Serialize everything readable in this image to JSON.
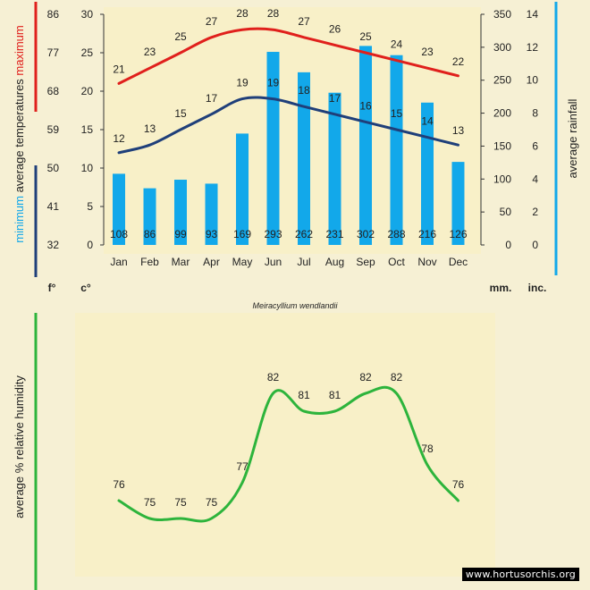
{
  "chart_data": [
    {
      "type": "bar+line",
      "subtitle": "Meiracyllium wendlandii",
      "categories": [
        "Jan",
        "Feb",
        "Mar",
        "Apr",
        "May",
        "Jun",
        "Jul",
        "Aug",
        "Sep",
        "Oct",
        "Nov",
        "Dec"
      ],
      "series": [
        {
          "name": "maximum",
          "type": "line",
          "color": "#e0201c",
          "values": [
            21,
            23,
            25,
            27,
            28,
            28,
            27,
            26,
            25,
            24,
            23,
            22
          ]
        },
        {
          "name": "minimum",
          "type": "line",
          "color": "#1f3f7a",
          "values": [
            12,
            13,
            15,
            17,
            19,
            19,
            18,
            17,
            16,
            15,
            14,
            13
          ]
        },
        {
          "name": "rainfall",
          "type": "bar",
          "color": "#12a8ea",
          "values": [
            108,
            86,
            99,
            93,
            169,
            293,
            262,
            231,
            302,
            288,
            216,
            126
          ]
        }
      ],
      "ylabel_left": "average temperatures",
      "ylabel_left_prefix_min": "minimum",
      "ylabel_left_suffix_max": "maximum",
      "ylabel_right": "average rainfall",
      "axis_celsius": {
        "unit": "c°",
        "ticks": [
          "30",
          "25",
          "20",
          "15",
          "10",
          "5",
          "0"
        ],
        "ylim": [
          0,
          30
        ]
      },
      "axis_fahrenheit": {
        "unit": "f°",
        "ticks": [
          "86",
          "77",
          "68",
          "59",
          "50",
          "41",
          "32"
        ]
      },
      "axis_mm": {
        "unit": "mm.",
        "ticks": [
          "350",
          "300",
          "250",
          "200",
          "150",
          "100",
          "50",
          "0"
        ],
        "ylim": [
          0,
          350
        ]
      },
      "axis_inch": {
        "unit": "inc.",
        "ticks": [
          "14",
          "12",
          "10",
          "8",
          "6",
          "4",
          "2",
          "0"
        ]
      },
      "grid": false
    },
    {
      "type": "line",
      "categories": [
        "Jan",
        "Feb",
        "Mar",
        "Apr",
        "May",
        "Jun",
        "Jul",
        "Aug",
        "Sep",
        "Oct",
        "Nov",
        "Dec"
      ],
      "series": [
        {
          "color": "#2db43c",
          "values": [
            76,
            75,
            75,
            75,
            77,
            82,
            81,
            81,
            82,
            82,
            78,
            76
          ]
        }
      ],
      "ylabel": "average %  relative humidity",
      "ylim": [
        73,
        84
      ]
    }
  ],
  "watermark": "www.hortusorchis.org",
  "colors": {
    "background": "#f6f0d4",
    "panel": "#f8f0c8",
    "max": "#e0201c",
    "min": "#1f3f7a",
    "rain": "#12a8ea",
    "humidity": "#2db43c"
  }
}
